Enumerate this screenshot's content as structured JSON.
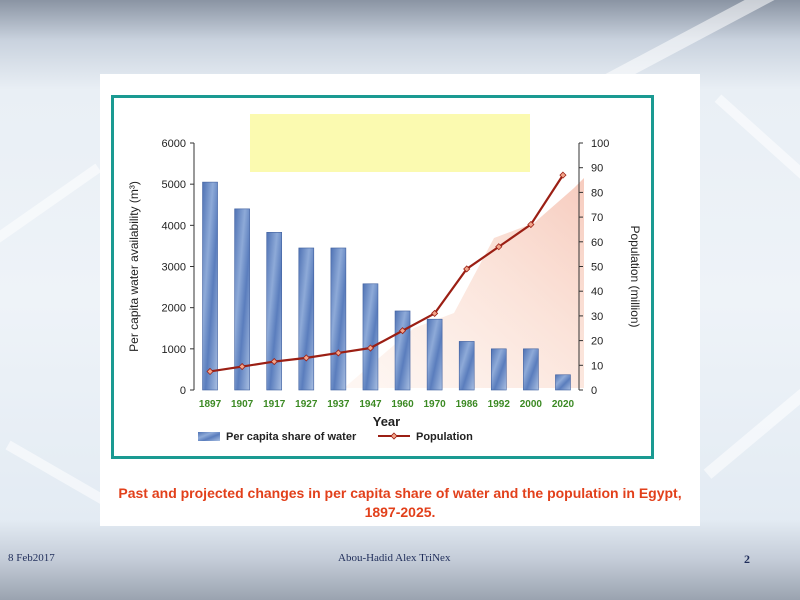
{
  "caption": "Past and projected changes in per capita share of water and the population in Egypt, 1897-2025.",
  "footer": {
    "date": "8 Feb2017",
    "author": "Abou-Hadid    Alex  TriNex",
    "page": "2"
  },
  "colors": {
    "frame": "#1a9a92",
    "bar": "#5b7fbe",
    "line": "#9b1f14",
    "year_label": "#3c8a24",
    "caption": "#e2401b",
    "highlight_box": "#fbfab0"
  },
  "chart_data": {
    "type": "bar+line",
    "title": "",
    "xlabel": "Year",
    "ylabel": "Per capita water availability (m³)",
    "ylabel_right": "Population (million)",
    "categories": [
      "1897",
      "1907",
      "1917",
      "1927",
      "1937",
      "1947",
      "1960",
      "1970",
      "1986",
      "1992",
      "2000",
      "2020"
    ],
    "ylim": [
      0,
      6000
    ],
    "ylim_right": [
      0,
      100
    ],
    "yticks": [
      "0",
      "1000",
      "2000",
      "3000",
      "4000",
      "5000",
      "6000"
    ],
    "yticks_right": [
      "0",
      "10",
      "20",
      "30",
      "40",
      "50",
      "60",
      "70",
      "80",
      "90",
      "100"
    ],
    "series": [
      {
        "name": "Per capita share of water",
        "type": "bar",
        "axis": "left",
        "values": [
          5050,
          4400,
          3830,
          3450,
          3450,
          2580,
          1920,
          1720,
          1180,
          1000,
          1000,
          370
        ]
      },
      {
        "name": "Population",
        "type": "line",
        "axis": "right",
        "values": [
          7.5,
          9.5,
          11.5,
          13,
          15,
          17,
          24,
          31,
          49,
          58,
          67,
          87
        ]
      }
    ],
    "legend": "bottom",
    "grid": false
  }
}
